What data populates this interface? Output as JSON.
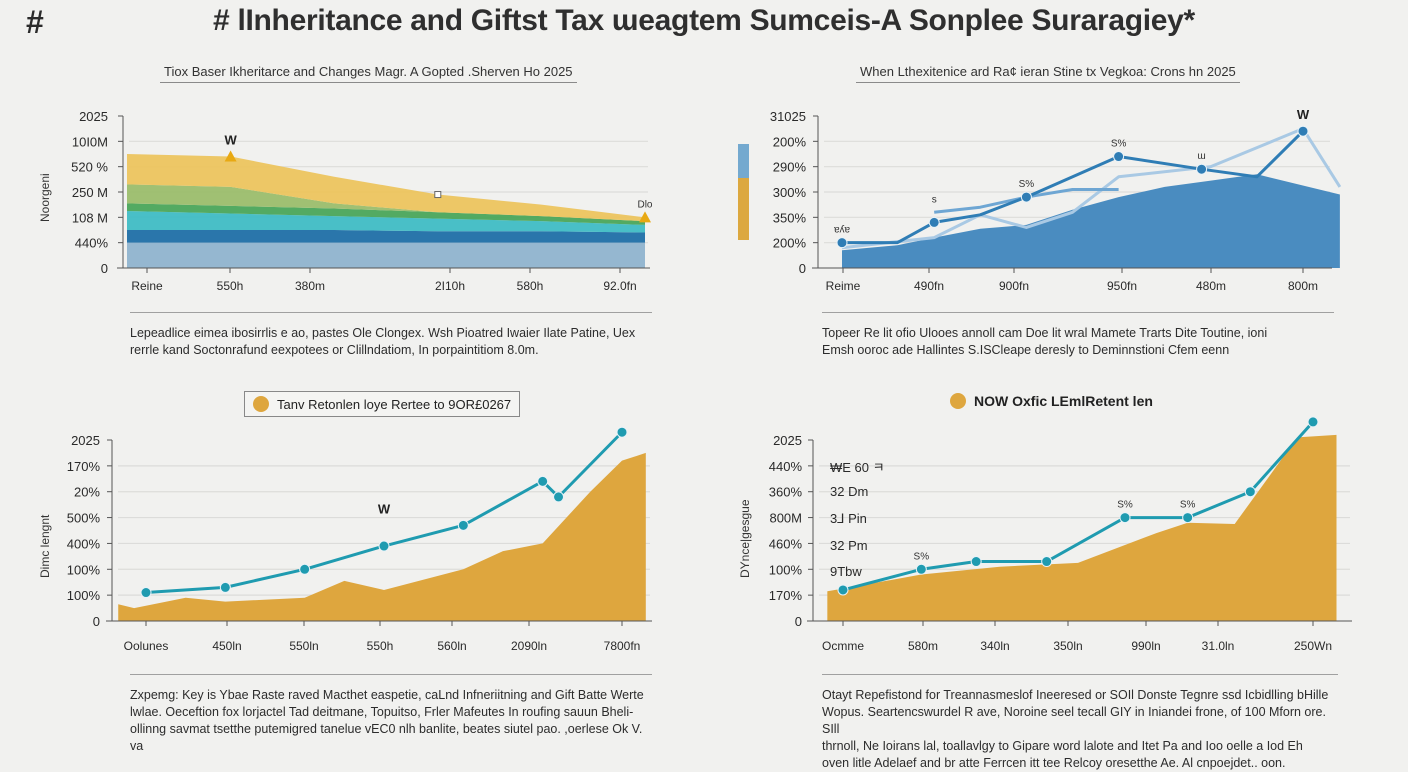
{
  "header": {
    "hash": "#",
    "title": "# lInheritance and Giftst Tax ɯeagtem Sumceis-A Sonplee Suraragiey*"
  },
  "panels": {
    "top_left": {
      "title": "Tiox Baser Ikheritarce and Changes Magr. A Gopted .Sherven Ho 2025",
      "ylabel": "Noorgeni",
      "description": [
        "Lepeadlice eimea ibosirrlis e ao, pastes Ole Clongex. Wsh Pioatred Iwaier Ilate Patine, Uex",
        "rerrle kand Soctonrafund eexpotees or Clillndatiom, In porpaintitiom 8.0m."
      ]
    },
    "top_right": {
      "title": "When Lthexitenice ard Ra¢ ieran Stine tx Vegkoa: Crons hn 2025",
      "description": [
        "Topeer Re lit ofio  Ulooes annoll  cam Doe lit wral Mamete Trarts Dite Toutine, ioni",
        "Emsh ooroc ade Hallintes  S.ISCleape deresly to Deminnstioni Cfem eenn"
      ]
    },
    "bottom_left": {
      "legend": "Tanv Retonlen loye Rertee to 9OR£0267",
      "ylabel": "Dimc lengnt",
      "description": [
        "Zxpemg: Key is Ybae Raste raved Macthet easpetie, caLnd Infneriitning and Gift Batte Werte",
        "lwlae. Oeceftion fox lorjactel Tad deitmane, Topuitso, Frler Mafeutes In roufing sauun Bheli-",
        "ollinng savmat tsetthe putemigred tanelue vEC0 nlh banlite, beates siutel pao. ,oerlese Ok V. va"
      ]
    },
    "bottom_right": {
      "legend": "NOW Oxfic LEmlRetent len",
      "ylabel": "DYnce|gesgue",
      "inline_labels": [
        "₩E 60 ㅋ",
        "32 Dm",
        "3⅃ Pin",
        "32 Pm",
        "9Tbw"
      ],
      "description": [
        "Otayt Repefistond for Treannasmeslof Ineeresed or  SOIl  Donste Tegnre ssd Icbidlling bHille",
        "Wopus. Seartencswurdel R ave, Noroine seel tecall GIY in Iniandei frone, of 100 Mforn ore. SIll",
        "thrnoll, Ne Ioirans lal, toallavlgy to Gipare word lalote and Itet Pa and Ioo oelle a Iod Eh",
        "oven litle Adelaef and br atte Ferrcen itt tee Relcoy oresetthe Ae. Al cnpoejdet.. oon."
      ]
    }
  },
  "chart_data": [
    {
      "id": "top_left",
      "type": "area",
      "stacked": true,
      "title": "Tiox Baser Ikheritarce and Changes Magr. A Gopted .Sherven Ho 2025",
      "xlabel": "",
      "ylabel": "Noorgeni",
      "y_tick_labels": [
        "0",
        "440%",
        "108 M",
        "250 M",
        "520 %",
        "10I0M",
        "2025"
      ],
      "x_tick_labels": [
        "Reine",
        "550h",
        "380m",
        "2I10h",
        "580h",
        "92.0fn"
      ],
      "x": [
        0,
        1,
        2,
        3,
        4,
        5
      ],
      "ylim": [
        0,
        6
      ],
      "grid": true,
      "series": [
        {
          "name": "base",
          "color": "#8fb3cd",
          "top": [
            1.0,
            1.0,
            1.0,
            1.0,
            1.0,
            1.0
          ],
          "bottom": [
            0,
            0,
            0,
            0,
            0,
            0
          ]
        },
        {
          "name": "navy",
          "color": "#1f6fa6",
          "top": [
            1.5,
            1.5,
            1.5,
            1.45,
            1.45,
            1.4
          ],
          "bottom": [
            1.0,
            1.0,
            1.0,
            1.0,
            1.0,
            1.0
          ]
        },
        {
          "name": "teal",
          "color": "#3fbcc4",
          "top": [
            2.25,
            2.15,
            2.05,
            1.95,
            1.85,
            1.7
          ],
          "bottom": [
            1.5,
            1.5,
            1.5,
            1.45,
            1.45,
            1.4
          ]
        },
        {
          "name": "green",
          "color": "#4aa55a",
          "top": [
            2.55,
            2.45,
            2.35,
            2.2,
            2.05,
            1.85
          ],
          "bottom": [
            2.25,
            2.15,
            2.05,
            1.95,
            1.85,
            1.7
          ]
        },
        {
          "name": "light-green",
          "color": "#9bbd6c",
          "top": [
            3.3,
            3.2,
            2.55,
            2.2,
            2.05,
            1.85
          ],
          "bottom": [
            2.55,
            2.45,
            2.35,
            2.2,
            2.05,
            1.85
          ]
        },
        {
          "name": "yellow",
          "color": "#ecc45e",
          "top": [
            4.5,
            4.4,
            3.6,
            2.9,
            2.5,
            2.0
          ],
          "bottom": [
            3.3,
            3.2,
            2.55,
            2.2,
            2.05,
            1.85
          ]
        }
      ],
      "annotations": [
        {
          "text": "W",
          "x": 1,
          "y": 4.4,
          "marker": "triangle"
        },
        {
          "text": "",
          "x": 3,
          "y": 2.9,
          "marker": "square"
        },
        {
          "text": "Dlo",
          "x": 5,
          "y": 2.0,
          "marker": "triangle"
        }
      ]
    },
    {
      "id": "top_right",
      "type": "line",
      "title": "When Lthexitenice ard Ra¢ ieran Stine tx Vegkoa: Crons hn 2025",
      "xlabel": "",
      "ylabel": "",
      "y_tick_labels": [
        "0",
        "200%",
        "350%",
        "300%",
        "290%",
        "200%",
        "31025"
      ],
      "x_tick_labels": [
        "Reime",
        "490fn",
        "900fn",
        "950fn",
        "480m",
        "800m"
      ],
      "ylim": [
        0,
        6
      ],
      "grid": true,
      "area": {
        "name": "area",
        "color": "#4a8cc0",
        "x": [
          0,
          0.6,
          1,
          1.5,
          2,
          2.5,
          3,
          3.5,
          4,
          4.5,
          5.4
        ],
        "y": [
          0.7,
          0.9,
          1.2,
          1.55,
          1.7,
          2.3,
          2.8,
          3.2,
          3.45,
          3.7,
          2.9
        ]
      },
      "series": [
        {
          "name": "primary",
          "color": "#2f7db5",
          "x": [
            0,
            0.6,
            1,
            1.5,
            2,
            3,
            3.9,
            4.5,
            5
          ],
          "y": [
            1.0,
            1.0,
            1.8,
            2.1,
            2.8,
            4.4,
            3.9,
            3.6,
            5.4
          ],
          "markers": [
            0,
            2,
            4,
            5,
            6,
            8
          ]
        },
        {
          "name": "secondary",
          "color": "#6ea6d3",
          "x": [
            1,
            1.5,
            2,
            2.5,
            3
          ],
          "y": [
            2.2,
            2.4,
            2.8,
            3.1,
            3.1
          ],
          "markers": []
        },
        {
          "name": "tertiary",
          "color": "#a9c9e4",
          "x": [
            0,
            1,
            1.5,
            2,
            2.5,
            3,
            4,
            5,
            5.4
          ],
          "y": [
            0.8,
            1.2,
            2.1,
            1.6,
            2.2,
            3.6,
            4.0,
            5.5,
            3.2
          ],
          "markers": []
        }
      ],
      "annotations": [
        {
          "text": "ɐʎɐ",
          "x": 0,
          "y": 1.0
        },
        {
          "text": "s",
          "x": 1,
          "y": 2.2
        },
        {
          "text": "S%",
          "x": 2,
          "y": 2.8
        },
        {
          "text": "S%",
          "x": 3,
          "y": 4.4
        },
        {
          "text": "ɯ",
          "x": 3.9,
          "y": 3.9
        },
        {
          "text": "W",
          "x": 5,
          "y": 5.4
        }
      ],
      "legend": {
        "position": "left",
        "colors": [
          "#74a9cf",
          "#dca83f"
        ]
      }
    },
    {
      "id": "bottom_left",
      "type": "line",
      "title": "",
      "legend_label": "Tanv Retonlen loye Rertee to 9OR£0267",
      "xlabel": "",
      "ylabel": "Dimc lengnt",
      "y_tick_labels": [
        "0",
        "100%",
        "100%",
        "400%",
        "500%",
        "20%",
        "170%",
        "2025"
      ],
      "x_tick_labels": [
        "Oolunes",
        "450ln",
        "550ln",
        "550h",
        "560ln",
        "2090ln",
        "7800fn"
      ],
      "ylim": [
        0,
        7
      ],
      "grid": true,
      "area": {
        "name": "area",
        "color": "#dea63e",
        "x": [
          -0.35,
          -0.15,
          0.5,
          1,
          2,
          2.5,
          3,
          4,
          4.5,
          5,
          5.6,
          6,
          6.3
        ],
        "y": [
          0.65,
          0.5,
          0.9,
          0.75,
          0.9,
          1.55,
          1.2,
          2.0,
          2.7,
          3.0,
          5.0,
          6.2,
          6.5
        ]
      },
      "series": [
        {
          "name": "rate",
          "color": "#1f9bb0",
          "x": [
            0,
            1,
            2,
            3,
            4,
            5,
            5.2,
            6
          ],
          "y": [
            1.1,
            1.3,
            2.0,
            2.9,
            3.7,
            5.4,
            4.8,
            7.3
          ]
        }
      ],
      "annotations": [
        {
          "text": "W",
          "x": 3,
          "y": 3.7
        }
      ]
    },
    {
      "id": "bottom_right",
      "type": "line",
      "title": "",
      "legend_label": "NOW Oxfic LEmlRetent len",
      "xlabel": "",
      "ylabel": "DYnce|gesgue",
      "y_tick_labels": [
        "0",
        "170%",
        "100%",
        "460%",
        "800M",
        "360%",
        "440%",
        "2025"
      ],
      "x_tick_labels": [
        "Ocmme",
        "580m",
        "340ln",
        "350ln",
        "990ln",
        "31.0ln",
        "250Wn"
      ],
      "ylim": [
        0,
        7
      ],
      "grid": true,
      "area": {
        "name": "area",
        "color": "#dea63e",
        "x": [
          -0.2,
          0,
          1,
          2,
          3,
          4,
          4.4,
          5,
          5.8,
          6.3
        ],
        "y": [
          1.15,
          1.25,
          1.8,
          2.1,
          2.25,
          3.4,
          3.8,
          3.75,
          7.1,
          7.2
        ]
      },
      "series": [
        {
          "name": "rate",
          "color": "#1f9bb0",
          "x": [
            0,
            1,
            1.7,
            2.6,
            3.6,
            4.4,
            5.2,
            6
          ],
          "y": [
            1.2,
            2.0,
            2.3,
            2.3,
            4.0,
            4.0,
            5.0,
            7.7
          ]
        }
      ],
      "annotations": [
        {
          "text": "S%",
          "x": 1,
          "y": 2.0
        },
        {
          "text": "S%",
          "x": 3.6,
          "y": 4.0
        },
        {
          "text": "S%",
          "x": 4.4,
          "y": 4.0
        }
      ]
    }
  ]
}
